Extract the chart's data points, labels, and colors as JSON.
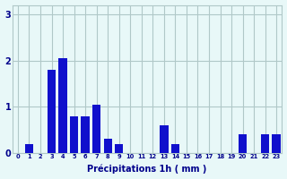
{
  "categories": [
    0,
    1,
    2,
    3,
    4,
    5,
    6,
    7,
    8,
    9,
    10,
    11,
    12,
    13,
    14,
    15,
    16,
    17,
    18,
    19,
    20,
    21,
    22,
    23
  ],
  "values": [
    0.0,
    0.2,
    0.0,
    1.8,
    2.05,
    0.8,
    0.8,
    1.05,
    0.3,
    0.2,
    0.0,
    0.0,
    0.0,
    0.6,
    0.2,
    0.0,
    0.0,
    0.0,
    0.0,
    0.0,
    0.4,
    0.0,
    0.4,
    0.4
  ],
  "bar_color": "#1010cc",
  "background_color": "#e8f8f8",
  "grid_color": "#b0c8c8",
  "text_color": "#00008b",
  "xlabel": "Précipitations 1h ( mm )",
  "ylim": [
    0,
    3.2
  ],
  "yticks": [
    0,
    1,
    2,
    3
  ],
  "xlim": [
    -0.5,
    23.5
  ]
}
